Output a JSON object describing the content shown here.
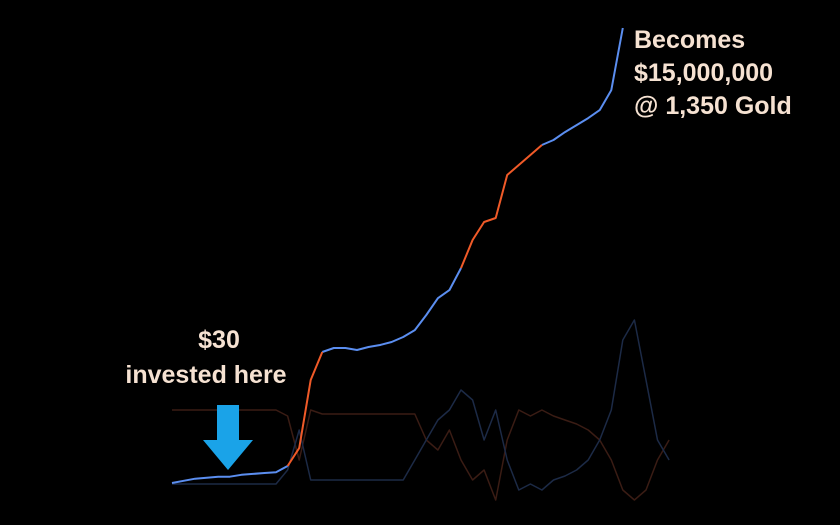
{
  "chart_data": {
    "type": "line",
    "log_scale": true,
    "grid": false,
    "ylim": [
      30,
      15000000
    ],
    "y2lim": [
      0,
      100
    ],
    "annotations": [
      {
        "lines": [
          "Becomes",
          "$15,000,000",
          "@ 1,350 Gold"
        ]
      },
      {
        "lines": [
          "$30",
          "invested here"
        ]
      }
    ],
    "series": [
      {
        "color": "#5b8ef0",
        "values": [
          30,
          32,
          34,
          35,
          36,
          36,
          38,
          39,
          40,
          41,
          49,
          null,
          null,
          1311,
          1473,
          1473,
          1390,
          1516,
          1604,
          1749,
          2020,
          2470,
          3810,
          6200,
          7820,
          14750,
          null,
          null,
          null,
          null,
          null,
          null,
          513200,
          593000,
          746000,
          913000,
          1117000,
          1407000,
          2502000,
          15000000,
          null,
          null,
          null,
          null
        ]
      },
      {
        "color": "#f05a28",
        "values": [
          null,
          null,
          null,
          null,
          null,
          null,
          null,
          null,
          null,
          null,
          49,
          82,
          585,
          1311,
          null,
          null,
          null,
          null,
          null,
          null,
          null,
          null,
          null,
          null,
          null,
          14750,
          33130,
          55680,
          62480,
          216300,
          288500,
          384800,
          513200,
          null,
          null,
          null,
          null,
          null,
          null,
          null,
          null,
          null,
          null,
          null
        ]
      },
      {
        "color": "#3a1c14",
        "axis": "y2",
        "values": [
          45,
          45,
          45,
          45,
          45,
          45,
          45,
          45,
          45,
          45,
          42,
          20,
          45,
          43,
          43,
          43,
          43,
          43,
          43,
          43,
          43,
          43,
          30,
          25,
          35,
          20,
          10,
          15,
          0,
          30,
          45,
          42,
          45,
          42,
          40,
          38,
          35,
          30,
          20,
          5,
          0,
          5,
          20,
          30
        ]
      },
      {
        "color": "#1c2a46",
        "axis": "y2",
        "values": [
          8,
          8,
          8,
          8,
          8,
          8,
          8,
          8,
          8,
          8,
          15,
          35,
          10,
          10,
          10,
          10,
          10,
          10,
          10,
          10,
          10,
          20,
          30,
          40,
          45,
          55,
          50,
          30,
          45,
          20,
          5,
          8,
          5,
          10,
          12,
          15,
          20,
          30,
          45,
          80,
          90,
          60,
          30,
          20
        ]
      }
    ]
  }
}
